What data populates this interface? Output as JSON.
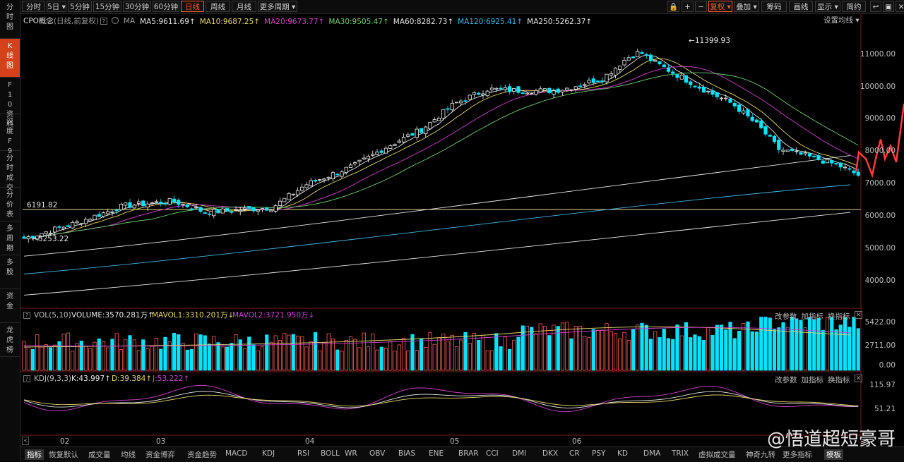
{
  "sidebar": [
    {
      "label": "分时图",
      "active": false
    },
    {
      "label": "K线图",
      "active": true
    },
    {
      "label": "F10资料",
      "active": false
    },
    {
      "label": "深度F9",
      "active": false
    },
    {
      "label": "分时成交",
      "active": false
    },
    {
      "label": "分价表",
      "active": false
    },
    {
      "label": "多周期",
      "active": false
    },
    {
      "label": "多股",
      "active": false
    },
    {
      "label": "资金",
      "active": false
    },
    {
      "label": "龙虎榜",
      "active": false
    }
  ],
  "toolbar": {
    "periods": [
      "分时",
      "5日 ▾",
      "5分钟",
      "15分钟",
      "30分钟",
      "60分钟",
      "日线",
      "周线",
      "月线",
      "更多周期 ▾"
    ],
    "active_period": "日线",
    "right_buttons": [
      "复权 ▾",
      "叠加 ▾",
      "筹码",
      "画线",
      "显示 ▾",
      "简约"
    ],
    "icons": [
      "lock-icon",
      "plus-icon",
      "minus-icon"
    ],
    "window_icons": [
      "back-icon",
      "restore-icon",
      "close-icon"
    ]
  },
  "main_header": {
    "name": "CPO概念",
    "params": "(日线,前复权)",
    "ma_label": "MA",
    "ma_items": [
      {
        "text": "MA5:9611.69↑",
        "color": "#e8e8e8"
      },
      {
        "text": "MA10:9687.25↑",
        "color": "#e8d56a"
      },
      {
        "text": "MA20:9673.77↑",
        "color": "#d23fd2"
      },
      {
        "text": "MA30:9505.47↑",
        "color": "#6fd16f"
      },
      {
        "text": "MA60:8282.73↑",
        "color": "#e8e8e8"
      },
      {
        "text": "MA120:6925.41↑",
        "color": "#3fb6e8"
      },
      {
        "text": "MA250:5262.37↑",
        "color": "#e8e8e8"
      }
    ],
    "settings": "设置均线 ▾"
  },
  "price_axis": [
    "11000.00",
    "10000.00",
    "9000.00",
    "8000.00",
    "7000.00",
    "6000.00",
    "5000.00",
    "4000.00"
  ],
  "annotations": {
    "high": "11399.93",
    "low": "5253.22",
    "line": "6191.82"
  },
  "vol_panel": {
    "title": "VOL(5,10)",
    "volume": "VOLUME:3570.281万↑",
    "mavol1": "MAVOL1:3310.201万↓",
    "mavol2": "MAVOL2:3721.950万↓",
    "axis": [
      "5422.00",
      "2711.00",
      "0.00"
    ],
    "actions": [
      "改参数",
      "加指标",
      "换指标"
    ]
  },
  "kdj_panel": {
    "title": "KDJ(9,3,3)",
    "k": "K:43.997↑",
    "d": "D:39.384↑",
    "j": "J:53.222↑",
    "axis": [
      "115.97",
      "51.21"
    ],
    "actions": [
      "改参数",
      "加指标",
      "换指标"
    ]
  },
  "time_axis": [
    "02",
    "03",
    "04",
    "05",
    "06"
  ],
  "bottom_tabs": [
    "指标",
    "恢复默认",
    "成交量",
    "均线",
    "资金博弈",
    "资金趋势",
    "MACD",
    "KDJ",
    "RSI",
    "BOLL",
    "WR",
    "OBV",
    "BIAS",
    "ENE",
    "BRAR",
    "CCI",
    "DMI",
    "DKX",
    "CR",
    "PSY",
    "KD",
    "DMA",
    "TRIX",
    "虚拟成交量",
    "神奇九转",
    "更多指标",
    "模板"
  ],
  "watermark": "@悟道超短豪哥"
}
